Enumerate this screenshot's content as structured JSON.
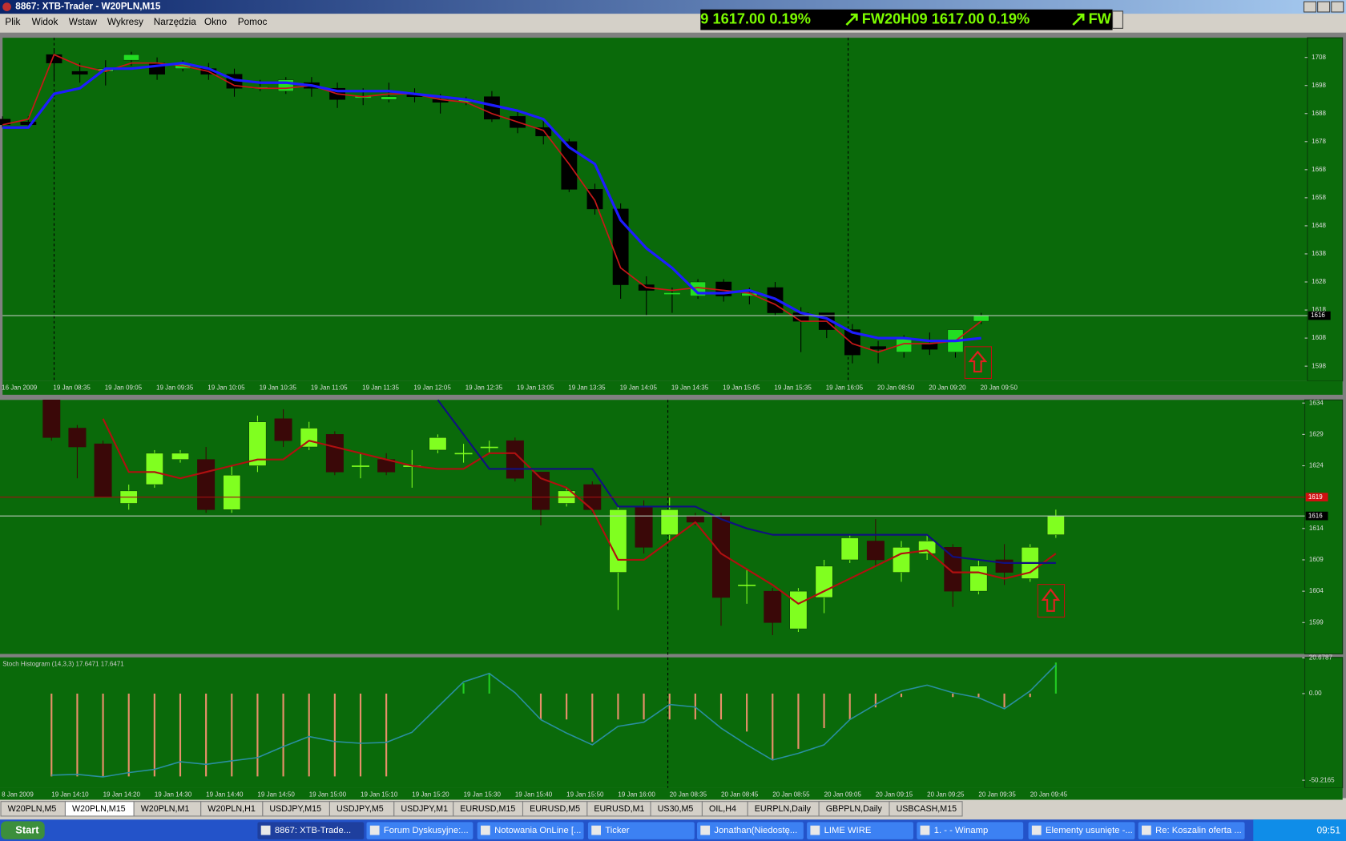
{
  "window": {
    "title": "8867: XTB-Trader - W20PLN,M15"
  },
  "menu": [
    "Plik",
    "Widok",
    "Wstaw",
    "Wykresy",
    "Narzędzia",
    "Okno",
    "Pomoc"
  ],
  "ticker": [
    "9 1617.00 0.19%",
    "FW20H09 1617.00 0.19%",
    "FW"
  ],
  "main_chart": {
    "type": "candlestick",
    "x_labels": [
      "16 Jan 2009",
      "19 Jan 08:35",
      "19 Jan 09:05",
      "19 Jan 09:35",
      "19 Jan 10:05",
      "19 Jan 10:35",
      "19 Jan 11:05",
      "19 Jan 11:35",
      "19 Jan 12:05",
      "19 Jan 12:35",
      "19 Jan 13:05",
      "19 Jan 13:35",
      "19 Jan 14:05",
      "19 Jan 14:35",
      "19 Jan 15:05",
      "19 Jan 15:35",
      "19 Jan 16:05",
      "20 Jan 08:50",
      "20 Jan 09:20",
      "20 Jan 09:50"
    ],
    "open": [
      1686,
      1685,
      1709,
      1703,
      1703,
      1707,
      1706,
      1704,
      1704,
      1702,
      1697,
      1696,
      1699,
      1697,
      1694,
      1693,
      1695,
      1693,
      1692,
      1694,
      1687,
      1683,
      1678,
      1661,
      1654,
      1627,
      1624,
      1623,
      1628,
      1623,
      1626,
      1617,
      1617,
      1611,
      1605,
      1603,
      1606,
      1603,
      1614
    ],
    "high": [
      1687,
      1687,
      1711,
      1706,
      1707,
      1710,
      1708,
      1707,
      1706,
      1704,
      1700,
      1701,
      1701,
      1699,
      1697,
      1699,
      1697,
      1695,
      1694,
      1696,
      1689,
      1686,
      1679,
      1663,
      1656,
      1630,
      1626,
      1629,
      1629,
      1626,
      1628,
      1619,
      1617,
      1613,
      1607,
      1609,
      1610,
      1611,
      1617
    ],
    "low": [
      1683,
      1683,
      1700,
      1699,
      1698,
      1705,
      1700,
      1703,
      1700,
      1694,
      1696,
      1695,
      1694,
      1690,
      1691,
      1692,
      1692,
      1688,
      1691,
      1685,
      1681,
      1677,
      1660,
      1652,
      1622,
      1616,
      1617,
      1622,
      1621,
      1620,
      1616,
      1603,
      1608,
      1599,
      1599,
      1601,
      1602,
      1601,
      1613
    ],
    "close": [
      1684,
      1684,
      1706,
      1702,
      1704,
      1709,
      1702,
      1706,
      1702,
      1697,
      1697.5,
      1700,
      1697,
      1693,
      1694,
      1694,
      1694,
      1692,
      1693,
      1686,
      1683,
      1680,
      1661,
      1654,
      1627,
      1625,
      1624,
      1628,
      1623,
      1624,
      1617,
      1614,
      1611,
      1602,
      1604,
      1608,
      1604,
      1611,
      1616
    ],
    "up_color": "#22dd22",
    "down_color": "#000000",
    "ma_fast": {
      "color": "#c81818",
      "values": [
        1684,
        1686,
        1709,
        1705,
        1703,
        1706,
        1706,
        1705,
        1703,
        1698,
        1697,
        1697,
        1698,
        1695,
        1694,
        1695,
        1695,
        1693,
        1692,
        1688,
        1685,
        1682,
        1670,
        1657,
        1633,
        1626,
        1625,
        1626,
        1625,
        1624,
        1620,
        1614,
        1614,
        1606,
        1603,
        1606,
        1606,
        1607,
        1614
      ]
    },
    "ma_slow": {
      "color": "#1d1dff",
      "values": [
        1683,
        1683,
        1695,
        1697,
        1704,
        1704,
        1705,
        1706,
        1704,
        1700,
        1699,
        1699,
        1698,
        1696,
        1696,
        1696,
        1695,
        1694,
        1693,
        1691,
        1689,
        1686,
        1676,
        1670,
        1650,
        1640,
        1633,
        1624,
        1624,
        1625,
        1622,
        1617,
        1615,
        1610,
        1608,
        1608,
        1607,
        1607,
        1608
      ]
    },
    "ylim": [
      1592.7,
      1715
    ],
    "yticks": [
      1708,
      1698,
      1688,
      1678,
      1668,
      1658,
      1648,
      1638,
      1628,
      1618,
      1608,
      1598
    ],
    "last_price": 1616
  },
  "sub_chart": {
    "type": "candlestick",
    "open": [
      1634.5,
      1630,
      1627.5,
      1618,
      1621,
      1625,
      1625,
      1617,
      1624,
      1631.5,
      1627,
      1629,
      1624,
      1625,
      1624,
      1626.5,
      1626,
      1627,
      1628,
      1623,
      1618,
      1621,
      1607,
      1617.5,
      1613,
      1616,
      1616,
      1605,
      1604,
      1598,
      1603,
      1609,
      1612,
      1607,
      1610,
      1611,
      1604,
      1609,
      1606,
      1613
    ],
    "high": [
      1634.5,
      1630.5,
      1628,
      1621,
      1626.5,
      1626.5,
      1627,
      1624,
      1632,
      1633,
      1631,
      1629.5,
      1626,
      1626,
      1626.5,
      1629,
      1627.5,
      1628,
      1628.5,
      1623,
      1620.5,
      1621.5,
      1617.5,
      1618.5,
      1619,
      1616.5,
      1616.5,
      1607.5,
      1604.5,
      1604.5,
      1609,
      1613,
      1615.5,
      1612,
      1613,
      1611.5,
      1609,
      1611.5,
      1611.5,
      1617
    ],
    "low": [
      1628,
      1622,
      1619,
      1617,
      1620.5,
      1624.5,
      1616.5,
      1616.5,
      1623,
      1627,
      1626.5,
      1622.5,
      1622,
      1622.5,
      1620.5,
      1626,
      1624.5,
      1626,
      1621.5,
      1614.5,
      1617.5,
      1616.5,
      1601,
      1610,
      1612,
      1614.5,
      1598.5,
      1602,
      1597,
      1597.5,
      1600.5,
      1608.5,
      1608,
      1605.5,
      1609,
      1601.5,
      1603.5,
      1605,
      1605.5,
      1612.5
    ],
    "close": [
      1628.5,
      1627,
      1619,
      1620,
      1626,
      1626,
      1617,
      1622.5,
      1631,
      1628,
      1630,
      1623,
      1624,
      1623,
      1624,
      1628.5,
      1626,
      1627,
      1622,
      1617,
      1620,
      1617,
      1617,
      1611,
      1617,
      1615,
      1603,
      1605,
      1599,
      1604,
      1608,
      1612.5,
      1609,
      1611,
      1612,
      1604,
      1608,
      1607,
      1611,
      1616
    ],
    "up_color": "#80ff20",
    "down_color": "#3a0808",
    "ma_fast": {
      "color": "#b01010",
      "values": [
        null,
        null,
        1631.5,
        1623,
        1623,
        1622,
        1623,
        1624,
        1625,
        1625,
        1628,
        1627,
        1626,
        1625,
        1624,
        1623.5,
        1623.5,
        1626,
        1626,
        1622,
        1620.5,
        1617,
        1609,
        1609,
        1612,
        1615,
        1610,
        1607.5,
        1605,
        1602,
        1604,
        1606,
        1608,
        1610,
        1610.5,
        1607,
        1607,
        1606,
        1607,
        1610
      ]
    },
    "ma_slow": {
      "color": "#101080",
      "values": [
        null,
        null,
        null,
        null,
        null,
        null,
        null,
        null,
        null,
        null,
        null,
        null,
        null,
        null,
        null,
        1634.5,
        1629,
        1623.5,
        1623.5,
        1623.5,
        1623.5,
        1623.5,
        1617.5,
        1617.5,
        1617.5,
        1617.5,
        1615.5,
        1614,
        1613,
        1613,
        1613,
        1613,
        1613,
        1613,
        1613,
        1609.5,
        1609,
        1608.5,
        1608.5,
        1608.5
      ]
    },
    "ylim": [
      1594,
      1634.5
    ],
    "yticks": [
      1634,
      1629,
      1624,
      1614,
      1609,
      1604,
      1599
    ],
    "alert_level": 1619,
    "last_price": 1616
  },
  "stoch": {
    "type": "histogram",
    "title": "Stoch Histogram (14,3,3) 17.6471 17.6471",
    "x_labels": [
      "8 Jan 2009",
      "19 Jan 14:10",
      "19 Jan 14:20",
      "19 Jan 14:30",
      "19 Jan 14:40",
      "19 Jan 14:50",
      "19 Jan 15:00",
      "19 Jan 15:10",
      "19 Jan 15:20",
      "19 Jan 15:30",
      "19 Jan 15:40",
      "19 Jan 15:50",
      "19 Jan 16:00",
      "20 Jan 08:35",
      "20 Jan 08:45",
      "20 Jan 08:55",
      "20 Jan 09:05",
      "20 Jan 09:15",
      "20 Jan 09:25",
      "20 Jan 09:35",
      "20 Jan 09:45"
    ],
    "histogram": [
      -48,
      -48,
      -48,
      -48,
      -48,
      -48,
      -48,
      -48,
      -48,
      -48,
      -48,
      -48,
      -48,
      -48,
      0,
      0,
      6,
      12,
      0,
      -15,
      -15,
      -28,
      -15,
      -15,
      -15,
      -15,
      -15,
      -22,
      -38,
      -32,
      -20,
      -15,
      -8,
      -2,
      0,
      -2,
      -2,
      -8,
      -2,
      18
    ],
    "pos_color": "#22cc22",
    "neg_color": "#e8906a",
    "signal": {
      "color": "#2a8fa0",
      "values": [
        -47.3,
        -46.8,
        -48.3,
        -45.8,
        -43.9,
        -39.5,
        -41,
        -39,
        -37.1,
        -30.7,
        -24.9,
        -27.8,
        -28.8,
        -28.3,
        -22.4,
        -7.8,
        6.8,
        11.7,
        0.5,
        -15.1,
        -22.9,
        -29.7,
        -19,
        -16.6,
        -6.3,
        -7.8,
        -20,
        -29.7,
        -38.5,
        -34.6,
        -29.7,
        -15.1,
        -6.3,
        1.5,
        4.9,
        0.5,
        -2.4,
        -8.8,
        1.5,
        16.6
      ]
    },
    "ylim": [
      -54.6,
      21
    ],
    "yticks": [
      20.6787,
      {
        "value": 0,
        "label": "0.00"
      },
      -50.2165
    ]
  },
  "tabs": [
    "W20PLN,M5",
    "W20PLN,M15",
    "W20PLN,M1",
    "W20PLN,H1",
    "USDJPY,M15",
    "USDJPY,M5",
    "USDJPY,M1",
    "EURUSD,M15",
    "EURUSD,M5",
    "EURUSD,M1",
    "US30,M5",
    "OIL,H4",
    "EURPLN,Daily",
    "GBPPLN,Daily",
    "USBCASH,M15"
  ],
  "taskbar": {
    "start": "Start",
    "items": [
      "8867: XTB-Trade...",
      "Forum Dyskusyjne:...",
      "Notowania OnLine [...",
      "Ticker",
      "Jonathan(Niedostę...",
      "LIME WIRE",
      "1. - - Winamp",
      "Elementy usunięte -...",
      "Re: Koszalin oferta ..."
    ],
    "clock": "09:51"
  }
}
